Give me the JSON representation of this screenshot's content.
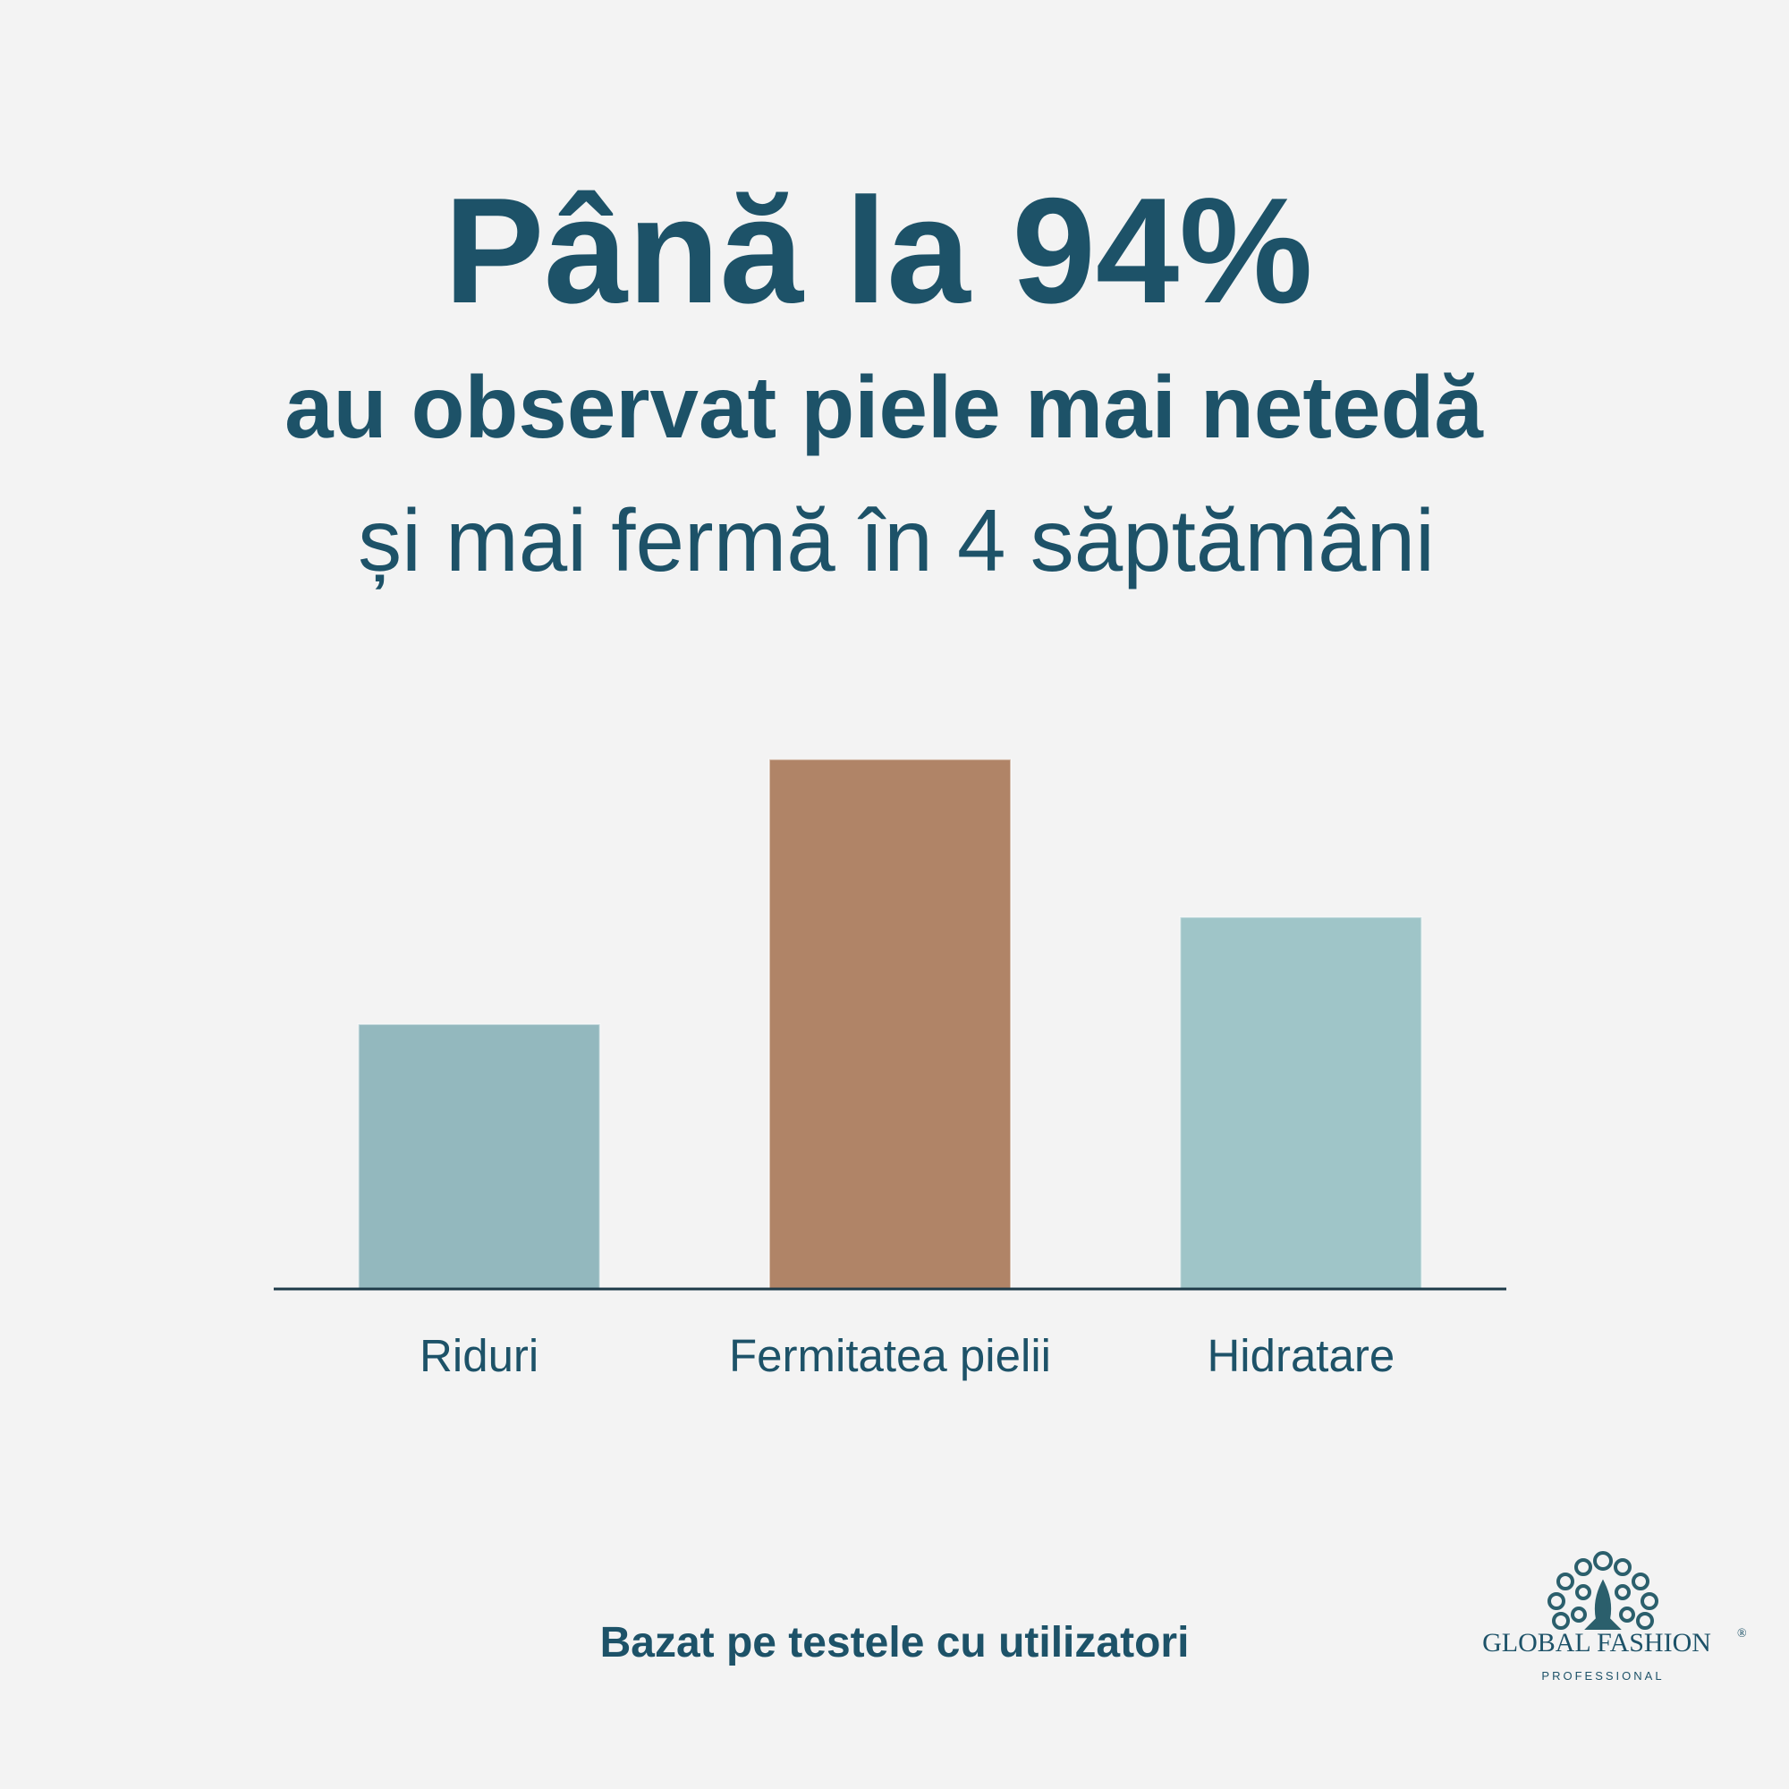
{
  "chart_data": {
    "type": "bar",
    "title": "Până la 94%",
    "subtitle": [
      "au observat piele mai netedă",
      "și mai fermă în 4 săptămâni"
    ],
    "categories": [
      "Riduri",
      "Fermitatea pielii",
      "Hidratare"
    ],
    "values": [
      47,
      94,
      66
    ],
    "colors": [
      "#93b8be",
      "#b08467",
      "#9fc5c8"
    ],
    "ylim": [
      0,
      100
    ],
    "footnote": "Bazat pe testele cu utilizatori"
  },
  "logo": {
    "name": "GLOBAL FASHION",
    "mark": "®",
    "tagline": "PROFESSIONAL"
  }
}
